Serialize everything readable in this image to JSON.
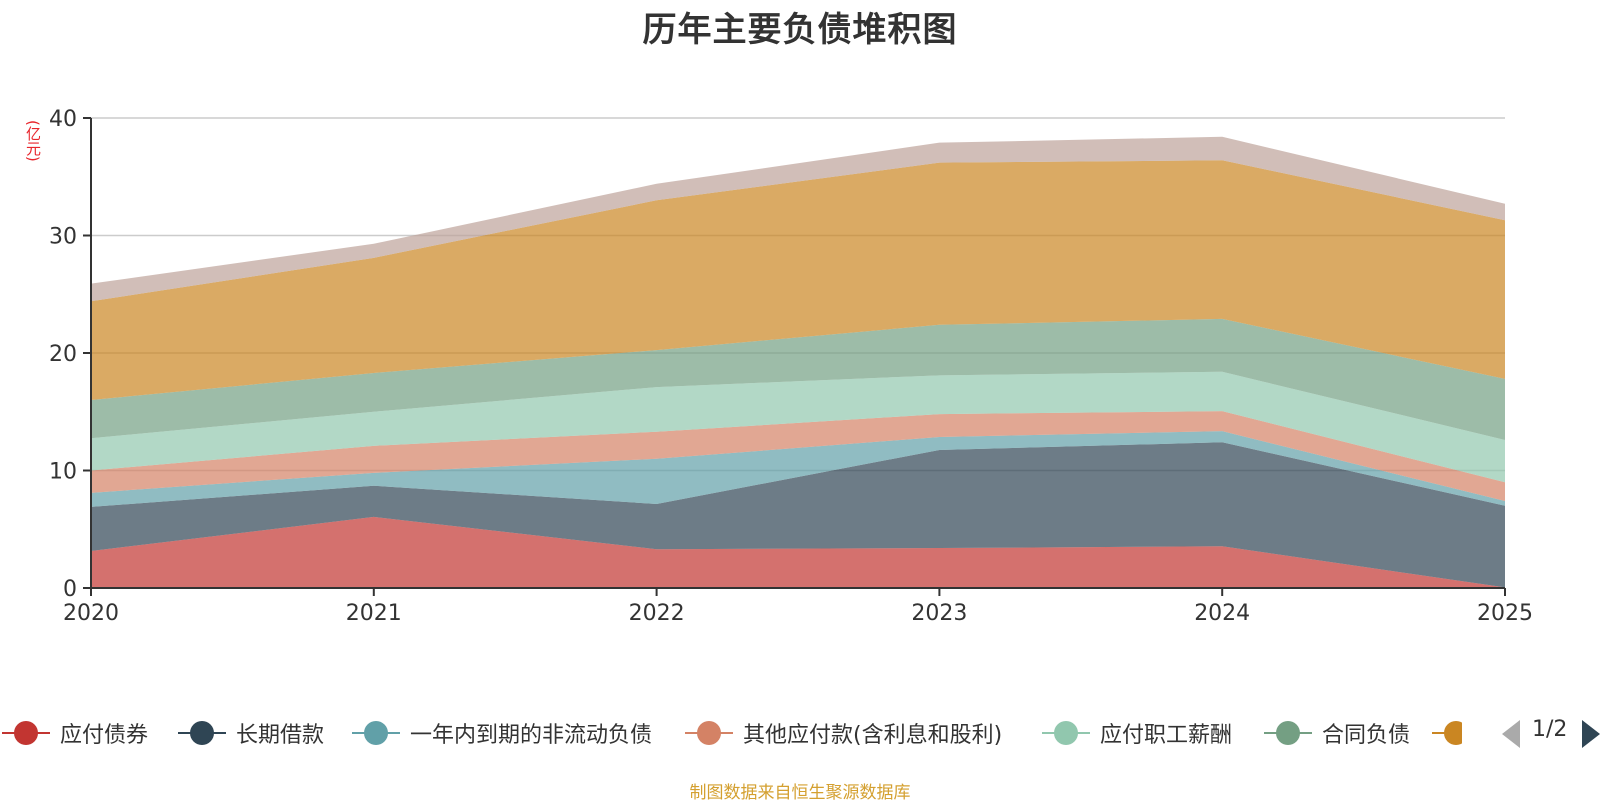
{
  "chart_data": {
    "type": "area",
    "stacked": true,
    "title": "历年主要负债堆积图",
    "ylabel": "(亿元)",
    "xlabel": "",
    "categories": [
      "2020",
      "2021",
      "2022",
      "2023",
      "2024",
      "2025"
    ],
    "ylim": [
      0,
      40
    ],
    "yticks": [
      "0",
      "10",
      "20",
      "30",
      "40"
    ],
    "grid": true,
    "legend_position": "bottom",
    "series": [
      {
        "name": "应付债券",
        "color": "#c23531",
        "values": [
          3.15,
          6.05,
          3.3,
          3.4,
          3.55,
          0.05
        ]
      },
      {
        "name": "长期借款",
        "color": "#2f4554",
        "values": [
          3.75,
          2.65,
          3.85,
          8.35,
          8.85,
          6.95
        ]
      },
      {
        "name": "一年内到期的非流动负债",
        "color": "#61a0a8",
        "values": [
          1.2,
          1.1,
          3.85,
          1.1,
          0.95,
          0.4
        ]
      },
      {
        "name": "其他应付款(含利息和股利)",
        "color": "#d48265",
        "values": [
          1.9,
          2.3,
          2.3,
          1.95,
          1.7,
          1.6
        ]
      },
      {
        "name": "应付职工薪酬",
        "color": "#91c7ae",
        "values": [
          2.75,
          2.9,
          3.8,
          3.3,
          3.35,
          3.6
        ]
      },
      {
        "name": "合同负债",
        "color": "#749f83",
        "values": [
          3.25,
          3.3,
          3.15,
          4.3,
          4.5,
          5.2
        ]
      },
      {
        "name": "",
        "color": "#ca8622",
        "values": [
          8.4,
          9.8,
          12.75,
          13.8,
          13.5,
          13.5
        ]
      },
      {
        "name": "",
        "color": "#bda29a",
        "values": [
          1.5,
          1.2,
          1.4,
          1.7,
          2.0,
          1.4
        ]
      }
    ]
  },
  "legend": {
    "page_indicator": "1/2"
  },
  "source_note": "制图数据来自恒生聚源数据库"
}
